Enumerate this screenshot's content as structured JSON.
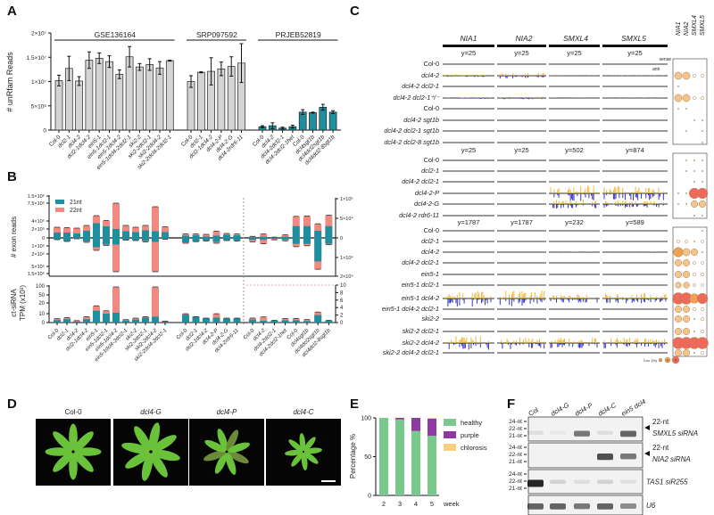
{
  "panels": {
    "A": "A",
    "B": "B",
    "C": "C",
    "D": "D",
    "E": "E",
    "F": "F"
  },
  "colors": {
    "grey": "#d4d4d4",
    "teal": "#1f8fa0",
    "salmon": "#f08a80",
    "sense": "#f0b020",
    "anti": "#2020c0",
    "healthy": "#79c98d",
    "purple": "#8e3aa0",
    "chlorosis": "#f5cf7a"
  },
  "chart_data": [
    {
      "id": "A",
      "type": "bar",
      "ylabel": "# unRfam Reads",
      "yticks": [
        "0",
        "5×10⁶",
        "1×10⁷",
        "1.5×10⁷",
        "2×10⁷"
      ],
      "ylim": [
        0,
        20000000
      ],
      "groups": [
        {
          "name": "GSE136164",
          "color": "grey",
          "categories": [
            "Col-0",
            "dcl2-1",
            "dcl4-2",
            "dcl2-1dcl4-2",
            "ein5-1",
            "ein5-1dcl2-1",
            "ein5-1dcl4-2",
            "ein5-1dcl4-2dcl2-1",
            "ski2-2",
            "ski2-2dcl2-1",
            "ski2-2dcl4-2",
            "ski2-2dcl4-2dcl2-1"
          ],
          "values": [
            10200000,
            12700000,
            10100000,
            14400000,
            14800000,
            14100000,
            11500000,
            15100000,
            13000000,
            13500000,
            12800000,
            14300000
          ],
          "errors": [
            1100000,
            2500000,
            900000,
            1700000,
            1100000,
            1200000,
            900000,
            2100000,
            700000,
            1200000,
            1300000,
            100000
          ]
        },
        {
          "name": "SRP097592",
          "color": "grey",
          "categories": [
            "Col-0",
            "dcl2-1",
            "dcl2-1dcl4-2",
            "dcl4-2-P",
            "dcl4-2-G",
            "dcl4-2rdr6-11"
          ],
          "values": [
            10000000,
            11900000,
            12100000,
            12600000,
            13100000,
            13800000
          ],
          "errors": [
            1200000,
            100000,
            2800000,
            1400000,
            2000000,
            4000000
          ]
        },
        {
          "name": "PRJEB52819",
          "color": "teal",
          "categories": [
            "Col-0",
            "dcl4-2",
            "dcl4-2dcl2-1",
            "dcl4-2dcl2-1het",
            "Col-0",
            "dcl4sgt1b",
            "dcl4dcl2sgt1b",
            "dcl4dcl2-8sgt1b"
          ],
          "values": [
            700000,
            900000,
            400000,
            700000,
            3700000,
            3600000,
            4700000,
            3700000
          ],
          "errors": [
            200000,
            600000,
            200000,
            300000,
            500000,
            100000,
            600000,
            300000
          ]
        }
      ]
    },
    {
      "id": "B-exon",
      "type": "bar",
      "ylabel": "# exon reads",
      "legend": [
        "21nt",
        "22nt"
      ],
      "legend_position": "top-left",
      "yticks_left": [
        "1.5×10⁶",
        "7.5×10⁵",
        "4×10⁵",
        "2×10⁵",
        "0",
        "1×10⁵",
        "2×10⁵",
        "5×10⁵",
        "1.5×10⁶"
      ],
      "yticks_right": [
        "1×10⁵",
        "5×10⁴",
        "0",
        "1×10⁴",
        "2×10⁴"
      ],
      "note": "values: [sense 21nt, sense 21+22nt, antisense 21nt, antisense 21+22nt]; left groups in 1e5 reads, right group in 1e4 reads",
      "left": [
        [
          1.2,
          2.4,
          -0.3,
          -0.4
        ],
        [
          1.2,
          2.3,
          -0.7,
          -0.8
        ],
        [
          1.0,
          2.2,
          -0.1,
          -0.2
        ],
        [
          1.6,
          2.8,
          -0.8,
          -1.0
        ],
        [
          3.3,
          5.0,
          -2.1,
          -2.8
        ],
        [
          2.6,
          3.9,
          -1.5,
          -1.7
        ],
        [
          2.0,
          8.0,
          -1.5,
          -15
        ],
        [
          1.5,
          2.8,
          -0.4,
          -0.5
        ],
        [
          1.3,
          2.4,
          -0.5,
          -0.6
        ],
        [
          1.7,
          2.8,
          -0.7,
          -0.9
        ],
        [
          1.5,
          7.0,
          -0.9,
          -12
        ],
        [
          1.3,
          2.5,
          -0.2,
          -0.3
        ],
        [
          0.5,
          0.9,
          -1.0,
          -1.2
        ],
        [
          0.6,
          0.9,
          -0.8,
          -0.85
        ],
        [
          0.3,
          0.8,
          -0.6,
          -0.7
        ],
        [
          0.5,
          1.5,
          -0.9,
          -1.2
        ],
        [
          0.7,
          1.0,
          -0.5,
          -0.6
        ],
        [
          0.6,
          0.9,
          -0.6,
          -0.7
        ]
      ],
      "right": [
        [
          0.2,
          0.4,
          -0.1,
          -0.2
        ],
        [
          0.3,
          1.0,
          -0.1,
          -0.3
        ],
        [
          0.1,
          0.2,
          -0.05,
          -0.1
        ],
        [
          0.3,
          0.8,
          -0.1,
          -0.15
        ],
        [
          3.0,
          5.5,
          -0.3,
          -0.45
        ],
        [
          3.0,
          5.6,
          -0.3,
          -0.4
        ],
        [
          1.8,
          3.6,
          -1.2,
          -1.6
        ],
        [
          3.0,
          5.8,
          -0.3,
          -0.35
        ]
      ]
    },
    {
      "id": "B-ct",
      "type": "bar",
      "ylabel": "ct-siRNA TPM (x10³)",
      "yticks_left": [
        "0",
        "10",
        "20",
        "50",
        "100"
      ],
      "yticks_right": [
        "0",
        "2",
        "4",
        "6",
        "8",
        "10"
      ],
      "note": "values: [21nt, 21+22nt]",
      "left": [
        [
          2.5,
          4
        ],
        [
          3.5,
          5
        ],
        [
          1,
          2
        ],
        [
          3.5,
          6
        ],
        [
          12,
          17
        ],
        [
          9,
          12
        ],
        [
          10,
          70
        ],
        [
          2,
          3
        ],
        [
          3,
          4.5
        ],
        [
          5,
          6
        ],
        [
          6,
          40
        ],
        [
          1,
          1.5
        ],
        [
          8,
          9
        ],
        [
          6,
          6
        ],
        [
          4.5,
          4.5
        ],
        [
          5,
          9
        ],
        [
          4,
          4.5
        ],
        [
          4.5,
          4.5
        ]
      ],
      "right": [
        [
          0.8,
          1.2
        ],
        [
          0.5,
          1.5
        ],
        [
          0.5,
          0.6
        ],
        [
          0.6,
          1.1
        ],
        [
          0.6,
          1.1
        ],
        [
          0.4,
          0.8
        ],
        [
          2.0,
          2.8
        ],
        [
          0.5,
          0.6
        ]
      ],
      "categories": [
        "Col-0",
        "dcl2-1",
        "dcl4-2",
        "dcl2-1dcl4-2",
        "ein5-1",
        "ein5-1dcl2-1",
        "ein5-1dcl4-2",
        "ein5-1dcl4-2dcl2-1",
        "ski2-2",
        "ski2-2dcl2-1",
        "ski2-2dcl4-2",
        "ski2-2dcl4-2dcl2-1",
        "Col-0",
        "dcl2-1",
        "dcl2-1dcl4-2",
        "dcl4-2-P",
        "dcl4-2-G",
        "dcl4-2rdr6-11",
        "Col-0",
        "dcl4-2",
        "dcl4-2dcl2-1",
        "dcl4-2dcl2-1het",
        "Col-0",
        "dcl4sgt1b",
        "dcl4dcl2sgt1b",
        "dcl4dcl2-8sgt1b"
      ]
    },
    {
      "id": "E",
      "type": "bar",
      "ylabel": "Percentage %",
      "xlabel": "week",
      "yticks": [
        "0",
        "50",
        "100"
      ],
      "ylim": [
        0,
        100
      ],
      "categories": [
        "2",
        "3",
        "4",
        "5"
      ],
      "series": [
        {
          "name": "healthy",
          "values": [
            100,
            98,
            83,
            77
          ]
        },
        {
          "name": "purple",
          "values": [
            0,
            2,
            17,
            22
          ]
        },
        {
          "name": "chlorosis",
          "values": [
            0,
            0,
            0,
            1
          ]
        }
      ],
      "legend_position": "right"
    }
  ],
  "panelC": {
    "genes": [
      "NIA1",
      "NIA2",
      "SMXL4",
      "SMXL5"
    ],
    "sense": "sense",
    "anti": "anti",
    "cov_label": "Cov. (%)",
    "cov_legend": [
      "25",
      "50",
      "75"
    ],
    "groups": [
      {
        "ylabels": [
          "y=25",
          "y=25",
          "y=25",
          "y=25"
        ],
        "rows": [
          {
            "label": "Col-0",
            "signal": [
              0,
              0,
              0,
              0
            ],
            "cov": [
              0,
              0,
              0,
              0
            ]
          },
          {
            "label": "dcl4-2",
            "signal": [
              0.15,
              0.35,
              0.05,
              0.05
            ],
            "cov": [
              30,
              30,
              5,
              5
            ]
          },
          {
            "label": "dcl4-2 dcl2-1",
            "signal": [
              0,
              0,
              0,
              0
            ],
            "cov": [
              2,
              0,
              0,
              0
            ]
          },
          {
            "label": "dcl4-2 dcl2-1⁺/⁻",
            "signal": [
              0.1,
              0.15,
              0.03,
              0.03
            ],
            "cov": [
              30,
              30,
              5,
              5
            ]
          },
          {
            "label": "Col-0",
            "signal": [
              0,
              0,
              0,
              0
            ],
            "cov": [
              2,
              2,
              0,
              0
            ]
          },
          {
            "label": "dcl4-2 sgt1b",
            "signal": [
              0,
              0,
              0,
              0
            ],
            "cov": [
              0,
              0,
              2,
              2
            ]
          },
          {
            "label": "dcl4-2 dcl2-1 sgt1b",
            "signal": [
              0,
              0,
              0,
              0
            ],
            "cov": [
              0,
              2,
              0,
              2
            ]
          },
          {
            "label": "dcl4-2 dcl2-8 sgt1b",
            "signal": [
              0,
              0,
              0,
              0
            ],
            "cov": [
              0,
              0,
              0,
              2
            ]
          }
        ]
      },
      {
        "ylabels": [
          "y=25",
          "y=25",
          "y=502",
          "y=874"
        ],
        "rows": [
          {
            "label": "Col-0",
            "signal": [
              0,
              0,
              0,
              0
            ],
            "cov": [
              0,
              3,
              3,
              3
            ]
          },
          {
            "label": "dcl2-1",
            "signal": [
              0,
              0,
              0,
              0
            ],
            "cov": [
              0,
              3,
              3,
              3
            ]
          },
          {
            "label": "dcl4-2 dcl2-1",
            "signal": [
              0,
              0,
              0,
              0
            ],
            "cov": [
              0,
              0,
              3,
              3
            ]
          },
          {
            "label": "dcl4-2-P",
            "signal": [
              0,
              0,
              0.9,
              0.8
            ],
            "cov": [
              3,
              3,
              60,
              60
            ]
          },
          {
            "label": "dcl4-2-G",
            "signal": [
              0,
              0,
              0.5,
              0.4
            ],
            "cov": [
              3,
              3,
              25,
              25
            ]
          },
          {
            "label": "dcl4-2 rdr6-11",
            "signal": [
              0,
              0,
              0,
              0
            ],
            "cov": [
              0,
              0,
              2,
              2
            ]
          }
        ]
      },
      {
        "ylabels": [
          "y=1787",
          "y=1787",
          "y=232",
          "y=589"
        ],
        "rows": [
          {
            "label": "Col-0",
            "signal": [
              0,
              0,
              0,
              0
            ],
            "cov": [
              0,
              0,
              0,
              2
            ]
          },
          {
            "label": "dcl2-1",
            "signal": [
              0,
              0,
              0,
              0
            ],
            "cov": [
              5,
              5,
              3,
              5
            ]
          },
          {
            "label": "dcl4-2",
            "signal": [
              0,
              0,
              0.03,
              0.03
            ],
            "cov": [
              50,
              30,
              25,
              3
            ]
          },
          {
            "label": "dcl4-2 dcl2-1",
            "signal": [
              0,
              0,
              0,
              0
            ],
            "cov": [
              25,
              25,
              5,
              5
            ]
          },
          {
            "label": "ein5-1",
            "signal": [
              0,
              0,
              0,
              0
            ],
            "cov": [
              25,
              25,
              5,
              5
            ]
          },
          {
            "label": "ein5-1 dcl2-1",
            "signal": [
              0,
              0,
              0,
              0
            ],
            "cov": [
              20,
              20,
              5,
              5
            ]
          },
          {
            "label": "ein5-1 dcl4-2",
            "signal": [
              0.9,
              0.9,
              0.5,
              0.6
            ],
            "cov": [
              75,
              75,
              50,
              60
            ]
          },
          {
            "label": "ein5-1 dcl4-2 dcl2-1",
            "signal": [
              0,
              0,
              0,
              0
            ],
            "cov": [
              25,
              25,
              5,
              5
            ]
          },
          {
            "label": "ski2-2",
            "signal": [
              0,
              0,
              0,
              0
            ],
            "cov": [
              25,
              25,
              3,
              5
            ]
          },
          {
            "label": "ski2-2 dcl2-1",
            "signal": [
              0,
              0,
              0,
              0
            ],
            "cov": [
              25,
              25,
              3,
              5
            ]
          },
          {
            "label": "ski2-2 dcl4-2",
            "signal": [
              0.8,
              0.7,
              0.6,
              0.6
            ],
            "cov": [
              75,
              75,
              75,
              75
            ]
          },
          {
            "label": "ski2-2 dcl4-2 dcl2-1",
            "signal": [
              0,
              0,
              0,
              0
            ],
            "cov": [
              25,
              25,
              3,
              5
            ]
          }
        ]
      }
    ]
  },
  "panelD": {
    "genotypes": [
      "Col-0",
      "dcl4-G",
      "dcl4-P",
      "dcl4-C"
    ]
  },
  "panelF": {
    "lanes": [
      "Col",
      "dcl4-G",
      "dcl4-P",
      "dcl4-C",
      "ein5 dcl4"
    ],
    "blots": [
      {
        "markers": [
          "24-nt",
          "22-nt",
          "21-nt"
        ],
        "arrow_label": "22-nt",
        "probe": "SMXL5 siRNA",
        "bands": [
          0.1,
          0.05,
          0.6,
          0.1,
          0.7
        ]
      },
      {
        "markers": [
          "24-nt",
          "22-nt",
          "21-nt"
        ],
        "arrow_label": "22-nt",
        "probe": "NIA2 siRNA",
        "bands": [
          0,
          0,
          0,
          0.8,
          0.6
        ]
      },
      {
        "markers": [
          "24-nt",
          "22-nt",
          "21-nt"
        ],
        "probe": "TAS1 siR255",
        "bands": [
          1,
          0.15,
          0.1,
          0.15,
          0.08
        ]
      },
      {
        "markers": [],
        "probe": "U6",
        "bands": [
          0.7,
          0.7,
          0.6,
          0.7,
          0.5
        ]
      }
    ]
  }
}
